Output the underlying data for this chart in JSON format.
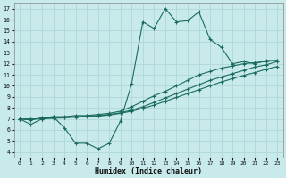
{
  "xlabel": "Humidex (Indice chaleur)",
  "bg_color": "#c8eaea",
  "line_color": "#1a6b5e",
  "grid_color": "#b0d8d8",
  "xlim": [
    -0.5,
    23.5
  ],
  "ylim": [
    3.5,
    17.5
  ],
  "xticks": [
    0,
    1,
    2,
    3,
    4,
    5,
    6,
    7,
    8,
    9,
    10,
    11,
    12,
    13,
    14,
    15,
    16,
    17,
    18,
    19,
    20,
    21,
    22,
    23
  ],
  "yticks": [
    4,
    5,
    6,
    7,
    8,
    9,
    10,
    11,
    12,
    13,
    14,
    15,
    16,
    17
  ],
  "jagged_x": [
    0,
    1,
    2,
    3,
    4,
    5,
    6,
    7,
    8,
    9,
    10,
    11,
    12,
    13,
    14,
    15,
    16,
    17,
    18,
    19,
    20,
    21,
    22,
    23
  ],
  "jagged_y": [
    7.0,
    6.5,
    7.0,
    7.2,
    6.2,
    4.8,
    4.8,
    4.3,
    4.8,
    6.8,
    10.2,
    15.8,
    15.2,
    17.0,
    15.8,
    15.9,
    16.7,
    14.2,
    13.5,
    12.0,
    12.2,
    12.0,
    12.3,
    12.3
  ],
  "line2_x": [
    0,
    1,
    2,
    3,
    4,
    5,
    6,
    7,
    8,
    9,
    10,
    11,
    12,
    13,
    14,
    15,
    16,
    17,
    18,
    19,
    20,
    21,
    22,
    23
  ],
  "line2_y": [
    7.0,
    6.9,
    7.1,
    7.2,
    7.2,
    7.3,
    7.3,
    7.4,
    7.5,
    7.7,
    8.1,
    8.6,
    9.1,
    9.5,
    10.0,
    10.5,
    11.0,
    11.3,
    11.6,
    11.8,
    12.0,
    12.1,
    12.2,
    12.3
  ],
  "line3_x": [
    0,
    1,
    2,
    3,
    4,
    5,
    6,
    7,
    8,
    9,
    10,
    11,
    12,
    13,
    14,
    15,
    16,
    17,
    18,
    19,
    20,
    21,
    22,
    23
  ],
  "line3_y": [
    7.0,
    6.95,
    7.05,
    7.1,
    7.15,
    7.2,
    7.25,
    7.3,
    7.4,
    7.55,
    7.8,
    8.1,
    8.5,
    8.9,
    9.3,
    9.7,
    10.1,
    10.5,
    10.8,
    11.1,
    11.4,
    11.7,
    11.9,
    12.2
  ],
  "line4_x": [
    0,
    1,
    2,
    3,
    4,
    5,
    6,
    7,
    8,
    9,
    10,
    11,
    12,
    13,
    14,
    15,
    16,
    17,
    18,
    19,
    20,
    21,
    22,
    23
  ],
  "line4_y": [
    7.0,
    7.0,
    7.0,
    7.05,
    7.1,
    7.15,
    7.2,
    7.25,
    7.35,
    7.5,
    7.7,
    7.95,
    8.25,
    8.6,
    8.95,
    9.3,
    9.65,
    10.0,
    10.35,
    10.65,
    10.95,
    11.2,
    11.5,
    11.75
  ]
}
